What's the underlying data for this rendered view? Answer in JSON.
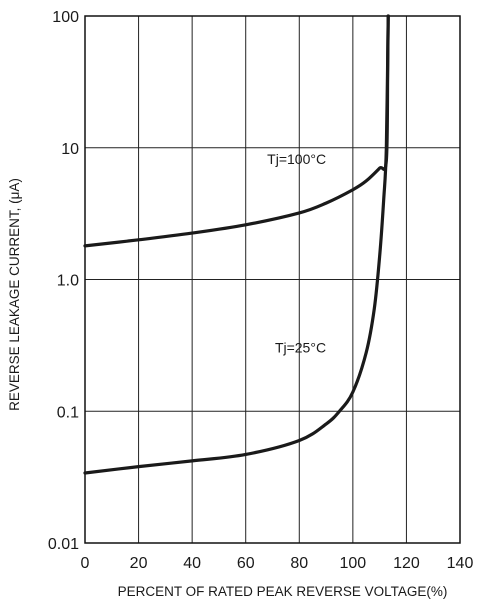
{
  "chart_data": {
    "type": "line",
    "title": "",
    "xlabel": "PERCENT OF RATED PEAK REVERSE VOLTAGE(%)",
    "ylabel": "REVERSE LEAKAGE CURRENT, (μA)",
    "xlim": [
      0,
      140
    ],
    "ylim": [
      0.01,
      100
    ],
    "yscale": "log",
    "grid": true,
    "x_ticks": [
      0,
      20,
      40,
      60,
      80,
      100,
      120,
      140
    ],
    "x_tick_labels": [
      "0",
      "20",
      "40",
      "60",
      "80",
      "100",
      "120",
      "140"
    ],
    "y_ticks": [
      0.01,
      0.1,
      1,
      10,
      100
    ],
    "y_tick_labels": [
      "0.01",
      "0.1",
      "1.0",
      "10",
      "100"
    ],
    "series": [
      {
        "name": "Tj=100°C",
        "x": [
          0,
          20,
          40,
          60,
          80,
          90,
          100,
          105,
          110,
          112.5,
          113,
          113.2
        ],
        "y": [
          1.8,
          2.0,
          2.25,
          2.6,
          3.2,
          3.8,
          4.8,
          5.6,
          7.0,
          8.0,
          40,
          100
        ]
      },
      {
        "name": "Tj=25°C",
        "x": [
          0,
          20,
          40,
          60,
          80,
          90,
          95,
          100,
          105,
          108,
          110,
          111.5,
          112.5,
          113.2
        ],
        "y": [
          0.034,
          0.038,
          0.042,
          0.047,
          0.06,
          0.08,
          0.1,
          0.14,
          0.28,
          0.6,
          1.5,
          4,
          10,
          100
        ]
      }
    ],
    "annotations": [
      {
        "text": "Tj=100°C",
        "x": 90,
        "y": 7.5
      },
      {
        "text": "Tj=25°C",
        "x": 90,
        "y": 0.28
      }
    ]
  }
}
